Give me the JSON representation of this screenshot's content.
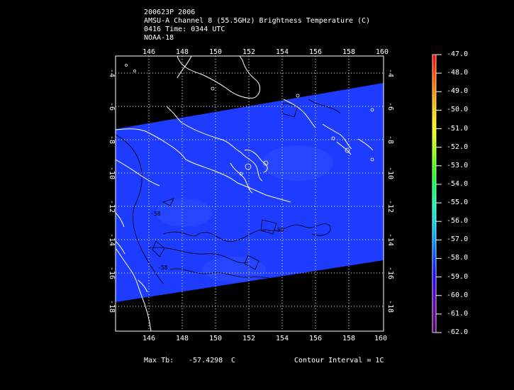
{
  "header": {
    "line1": "200623P 2006",
    "line2": "AMSU-A Channel 8 (55.5GHz) Brightness Temperature (C)",
    "line3": "0416 Time: 0344 UTC",
    "line4": "NOAA-18"
  },
  "map": {
    "lon_labels": [
      "146",
      "148",
      "150",
      "152",
      "154",
      "156",
      "158",
      "160"
    ],
    "lat_labels": [
      "-4",
      "-6",
      "-8",
      "-10",
      "-12",
      "-14",
      "-16",
      "-18"
    ],
    "contour_labels": [
      "-58",
      "-58",
      "-58"
    ],
    "swath_color": "#1e3cff",
    "coast_color": "#ffffff"
  },
  "colorbar": {
    "labels": [
      "-47.0",
      "-48.0",
      "-49.0",
      "-50.0",
      "-51.0",
      "-52.0",
      "-53.0",
      "-54.0",
      "-55.0",
      "-56.0",
      "-57.0",
      "-58.0",
      "-59.0",
      "-60.0",
      "-61.0",
      "-62.0"
    ],
    "colors": [
      "#ff0000",
      "#ff4400",
      "#ff8800",
      "#ffcc00",
      "#ffff00",
      "#aaff00",
      "#44ff00",
      "#00ff44",
      "#00ffaa",
      "#00dddd",
      "#0099ff",
      "#0044ff",
      "#2200ff",
      "#5500cc",
      "#660099",
      "#440066"
    ]
  },
  "footer": {
    "max_label": "Max Tb:",
    "max_value": "-57.4298",
    "max_unit": "C",
    "contour_label": "Contour Interval = 1C"
  }
}
